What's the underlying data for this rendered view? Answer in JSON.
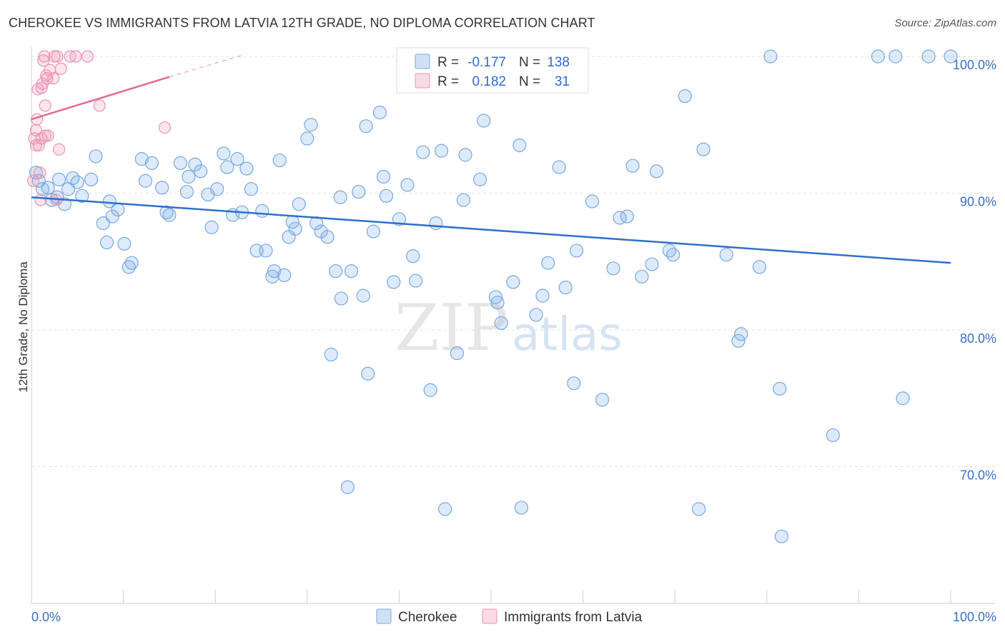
{
  "title": "CHEROKEE VS IMMIGRANTS FROM LATVIA 12TH GRADE, NO DIPLOMA CORRELATION CHART",
  "source": "Source: ZipAtlas.com",
  "watermark": {
    "zip": "ZIP",
    "atlas": "atlas"
  },
  "colors": {
    "series1_fill": "rgba(120,170,230,0.25)",
    "series1_stroke": "#7aa7e0",
    "series1_line": "#2f6fcc",
    "series2_fill": "rgba(240,150,180,0.25)",
    "series2_stroke": "#ec93b1",
    "series2_line": "#e06a95",
    "grid": "#e2e2e2",
    "tick_label": "#3a6fc4"
  },
  "legend": {
    "r_label": "R =",
    "n_label": "N =",
    "rows": [
      {
        "r": "-0.177",
        "n": "138"
      },
      {
        "r": "0.182",
        "n": "31"
      }
    ]
  },
  "chart_data": {
    "type": "scatter",
    "title": "CHEROKEE VS IMMIGRANTS FROM LATVIA 12TH GRADE, NO DIPLOMA CORRELATION CHART",
    "xlabel": "",
    "ylabel": "12th Grade, No Diploma",
    "xlim": [
      0,
      100
    ],
    "ylim": [
      60,
      102
    ],
    "x_tick_labels": [
      "0.0%",
      "100.0%"
    ],
    "y_ticks": [
      70,
      80,
      90,
      100
    ],
    "y_tick_labels": [
      "70.0%",
      "80.0%",
      "90.0%",
      "100.0%"
    ],
    "grid": true,
    "legend_position": "top-center",
    "series": [
      {
        "name": "Cherokee",
        "r": -0.177,
        "n": 138,
        "trend": {
          "x": [
            0,
            100
          ],
          "y": [
            89.7,
            84.9
          ]
        },
        "points": [
          [
            0.5,
            91.5
          ],
          [
            0.8,
            90.9
          ],
          [
            1.2,
            90.3
          ],
          [
            1.8,
            90.4
          ],
          [
            2.2,
            89.5
          ],
          [
            2.8,
            89.7
          ],
          [
            3.0,
            91.0
          ],
          [
            3.6,
            89.2
          ],
          [
            4.0,
            90.3
          ],
          [
            4.5,
            91.1
          ],
          [
            5.0,
            90.8
          ],
          [
            5.5,
            89.8
          ],
          [
            6.5,
            91.0
          ],
          [
            7.0,
            92.7
          ],
          [
            7.8,
            87.8
          ],
          [
            8.2,
            86.4
          ],
          [
            8.5,
            89.4
          ],
          [
            8.8,
            88.3
          ],
          [
            9.4,
            88.8
          ],
          [
            10.1,
            86.3
          ],
          [
            10.6,
            84.6
          ],
          [
            10.9,
            84.9
          ],
          [
            12.0,
            92.5
          ],
          [
            12.4,
            90.9
          ],
          [
            13.1,
            92.2
          ],
          [
            14.2,
            90.4
          ],
          [
            14.7,
            88.6
          ],
          [
            15.0,
            88.4
          ],
          [
            16.2,
            92.2
          ],
          [
            16.9,
            90.1
          ],
          [
            17.1,
            91.2
          ],
          [
            17.8,
            92.1
          ],
          [
            18.4,
            91.6
          ],
          [
            19.2,
            89.9
          ],
          [
            19.6,
            87.5
          ],
          [
            20.2,
            90.3
          ],
          [
            20.9,
            92.9
          ],
          [
            21.3,
            91.9
          ],
          [
            21.9,
            88.4
          ],
          [
            22.4,
            92.5
          ],
          [
            22.9,
            88.6
          ],
          [
            23.4,
            91.8
          ],
          [
            23.9,
            90.3
          ],
          [
            24.5,
            85.8
          ],
          [
            25.1,
            88.7
          ],
          [
            25.5,
            85.8
          ],
          [
            26.2,
            83.9
          ],
          [
            26.4,
            84.3
          ],
          [
            27.0,
            92.4
          ],
          [
            27.5,
            84.0
          ],
          [
            28.0,
            86.8
          ],
          [
            28.4,
            87.9
          ],
          [
            28.7,
            87.4
          ],
          [
            29.1,
            89.2
          ],
          [
            30.0,
            94.0
          ],
          [
            30.4,
            95.0
          ],
          [
            31.0,
            87.8
          ],
          [
            31.5,
            87.2
          ],
          [
            32.2,
            86.8
          ],
          [
            32.6,
            78.2
          ],
          [
            33.1,
            84.3
          ],
          [
            33.6,
            89.7
          ],
          [
            33.7,
            82.3
          ],
          [
            34.4,
            68.5
          ],
          [
            34.8,
            84.3
          ],
          [
            35.6,
            90.1
          ],
          [
            36.1,
            82.5
          ],
          [
            36.4,
            94.9
          ],
          [
            36.6,
            76.8
          ],
          [
            37.2,
            87.2
          ],
          [
            37.9,
            95.9
          ],
          [
            38.3,
            91.2
          ],
          [
            38.6,
            89.8
          ],
          [
            39.4,
            83.5
          ],
          [
            40.0,
            88.1
          ],
          [
            40.9,
            90.6
          ],
          [
            41.5,
            85.4
          ],
          [
            41.8,
            83.6
          ],
          [
            42.6,
            93.0
          ],
          [
            43.4,
            75.6
          ],
          [
            44.0,
            87.8
          ],
          [
            44.6,
            93.1
          ],
          [
            45.0,
            66.9
          ],
          [
            46.3,
            78.3
          ],
          [
            47.0,
            89.5
          ],
          [
            47.2,
            92.8
          ],
          [
            50.0,
            99.9
          ],
          [
            48.8,
            91.0
          ],
          [
            49.2,
            95.3
          ],
          [
            50.5,
            82.4
          ],
          [
            50.7,
            82.0
          ],
          [
            51.1,
            80.5
          ],
          [
            52.0,
            98.7
          ],
          [
            52.4,
            83.5
          ],
          [
            53.1,
            93.5
          ],
          [
            53.3,
            67.0
          ],
          [
            54.2,
            99.7
          ],
          [
            54.9,
            81.1
          ],
          [
            55.6,
            82.5
          ],
          [
            56.2,
            84.9
          ],
          [
            57.4,
            91.9
          ],
          [
            58.1,
            83.1
          ],
          [
            59.0,
            76.1
          ],
          [
            59.3,
            85.8
          ],
          [
            61.0,
            89.4
          ],
          [
            62.1,
            74.9
          ],
          [
            63.3,
            84.5
          ],
          [
            64.0,
            88.2
          ],
          [
            64.8,
            88.3
          ],
          [
            65.4,
            92.0
          ],
          [
            66.4,
            83.9
          ],
          [
            67.5,
            84.8
          ],
          [
            68.0,
            91.6
          ],
          [
            69.4,
            85.8
          ],
          [
            69.8,
            85.5
          ],
          [
            71.1,
            97.1
          ],
          [
            72.6,
            66.9
          ],
          [
            73.1,
            93.2
          ],
          [
            75.6,
            85.5
          ],
          [
            76.9,
            79.2
          ],
          [
            77.2,
            79.7
          ],
          [
            79.2,
            84.6
          ],
          [
            80.4,
            100.0
          ],
          [
            81.4,
            75.7
          ],
          [
            81.6,
            64.9
          ],
          [
            87.2,
            72.3
          ],
          [
            92.1,
            100.0
          ],
          [
            94.0,
            100.0
          ],
          [
            94.8,
            75.0
          ],
          [
            97.6,
            100.0
          ],
          [
            100.0,
            100.0
          ]
        ]
      },
      {
        "name": "Immigrants from Latvia",
        "r": 0.182,
        "n": 31,
        "trend": {
          "x": [
            0,
            15
          ],
          "y": [
            95.4,
            98.5
          ]
        },
        "trend_extended": {
          "x": [
            15,
            23
          ],
          "y": [
            98.5,
            100.1
          ]
        },
        "points": [
          [
            0.3,
            94.0
          ],
          [
            0.5,
            94.6
          ],
          [
            0.5,
            93.5
          ],
          [
            0.6,
            95.4
          ],
          [
            0.7,
            97.6
          ],
          [
            0.8,
            93.5
          ],
          [
            0.9,
            91.5
          ],
          [
            1.0,
            89.5
          ],
          [
            1.1,
            94.0
          ],
          [
            1.1,
            97.7
          ],
          [
            1.2,
            98.0
          ],
          [
            1.3,
            99.7
          ],
          [
            1.4,
            100.0
          ],
          [
            1.5,
            94.2
          ],
          [
            1.5,
            96.4
          ],
          [
            1.6,
            98.6
          ],
          [
            1.7,
            98.4
          ],
          [
            1.8,
            94.2
          ],
          [
            2.0,
            99.0
          ],
          [
            2.4,
            98.4
          ],
          [
            2.5,
            100.0
          ],
          [
            2.7,
            89.5
          ],
          [
            2.8,
            100.0
          ],
          [
            3.0,
            93.2
          ],
          [
            3.2,
            99.1
          ],
          [
            4.2,
            100.0
          ],
          [
            4.8,
            100.0
          ],
          [
            6.1,
            100.0
          ],
          [
            7.4,
            96.4
          ],
          [
            14.5,
            94.8
          ],
          [
            0.2,
            90.9
          ]
        ]
      }
    ]
  }
}
